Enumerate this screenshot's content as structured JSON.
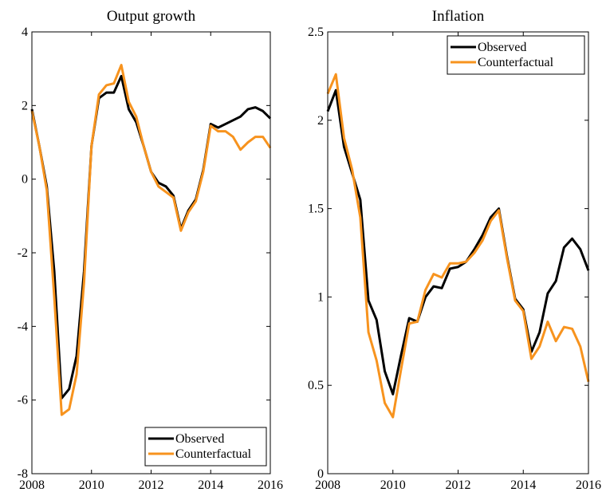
{
  "chart_data": [
    {
      "type": "line",
      "title": "Output growth",
      "x": [
        2008,
        2008.25,
        2008.5,
        2008.75,
        2009,
        2009.25,
        2009.5,
        2009.75,
        2010,
        2010.25,
        2010.5,
        2010.75,
        2011,
        2011.25,
        2011.5,
        2011.75,
        2012,
        2012.25,
        2012.5,
        2012.75,
        2013,
        2013.25,
        2013.5,
        2013.75,
        2014,
        2014.25,
        2014.5,
        2014.75,
        2015,
        2015.25,
        2015.5,
        2015.75,
        2016
      ],
      "series": [
        {
          "name": "Observed",
          "color": "#000000",
          "values": [
            1.9,
            0.9,
            -0.2,
            -2.5,
            -5.95,
            -5.7,
            -4.8,
            -2.5,
            0.9,
            2.2,
            2.35,
            2.35,
            2.8,
            1.9,
            1.55,
            0.9,
            0.2,
            -0.1,
            -0.2,
            -0.45,
            -1.35,
            -0.85,
            -0.55,
            0.25,
            1.5,
            1.4,
            1.5,
            1.6,
            1.7,
            1.9,
            1.95,
            1.85,
            1.65
          ]
        },
        {
          "name": "Counterfactual",
          "color": "#f7931e",
          "values": [
            1.85,
            0.9,
            -0.3,
            -3.2,
            -6.4,
            -6.25,
            -5.3,
            -2.8,
            0.9,
            2.3,
            2.55,
            2.6,
            3.1,
            2.1,
            1.7,
            0.9,
            0.2,
            -0.2,
            -0.35,
            -0.5,
            -1.4,
            -0.9,
            -0.6,
            0.2,
            1.45,
            1.3,
            1.3,
            1.15,
            0.8,
            1.0,
            1.15,
            1.15,
            0.85
          ]
        }
      ],
      "xlim": [
        2008,
        2016
      ],
      "xticks": [
        2008,
        2010,
        2012,
        2014,
        2016
      ],
      "ylim": [
        -8,
        4
      ],
      "yticks": [
        -8,
        -6,
        -4,
        -2,
        0,
        2,
        4
      ],
      "legend": "lower-right"
    },
    {
      "type": "line",
      "title": "Inflation",
      "x": [
        2008,
        2008.25,
        2008.5,
        2008.75,
        2009,
        2009.25,
        2009.5,
        2009.75,
        2010,
        2010.25,
        2010.5,
        2010.75,
        2011,
        2011.25,
        2011.5,
        2011.75,
        2012,
        2012.25,
        2012.5,
        2012.75,
        2013,
        2013.25,
        2013.5,
        2013.75,
        2014,
        2014.25,
        2014.5,
        2014.75,
        2015,
        2015.25,
        2015.5,
        2015.75,
        2016
      ],
      "series": [
        {
          "name": "Observed",
          "color": "#000000",
          "values": [
            2.05,
            2.17,
            1.85,
            1.7,
            1.55,
            0.98,
            0.87,
            0.58,
            0.45,
            0.67,
            0.88,
            0.86,
            1.0,
            1.06,
            1.05,
            1.16,
            1.17,
            1.2,
            1.27,
            1.35,
            1.45,
            1.5,
            1.23,
            0.99,
            0.93,
            0.69,
            0.8,
            1.02,
            1.09,
            1.28,
            1.33,
            1.27,
            1.15
          ]
        },
        {
          "name": "Counterfactual",
          "color": "#f7931e",
          "values": [
            2.15,
            2.26,
            1.9,
            1.72,
            1.45,
            0.8,
            0.64,
            0.4,
            0.32,
            0.59,
            0.85,
            0.86,
            1.04,
            1.13,
            1.11,
            1.19,
            1.19,
            1.2,
            1.25,
            1.32,
            1.43,
            1.49,
            1.22,
            0.98,
            0.92,
            0.65,
            0.72,
            0.86,
            0.75,
            0.83,
            0.82,
            0.72,
            0.52
          ]
        }
      ],
      "xlim": [
        2008,
        2016
      ],
      "xticks": [
        2008,
        2010,
        2012,
        2014,
        2016
      ],
      "ylim": [
        0,
        2.5
      ],
      "yticks": [
        0,
        0.5,
        1,
        1.5,
        2,
        2.5
      ],
      "legend": "upper-right"
    }
  ]
}
